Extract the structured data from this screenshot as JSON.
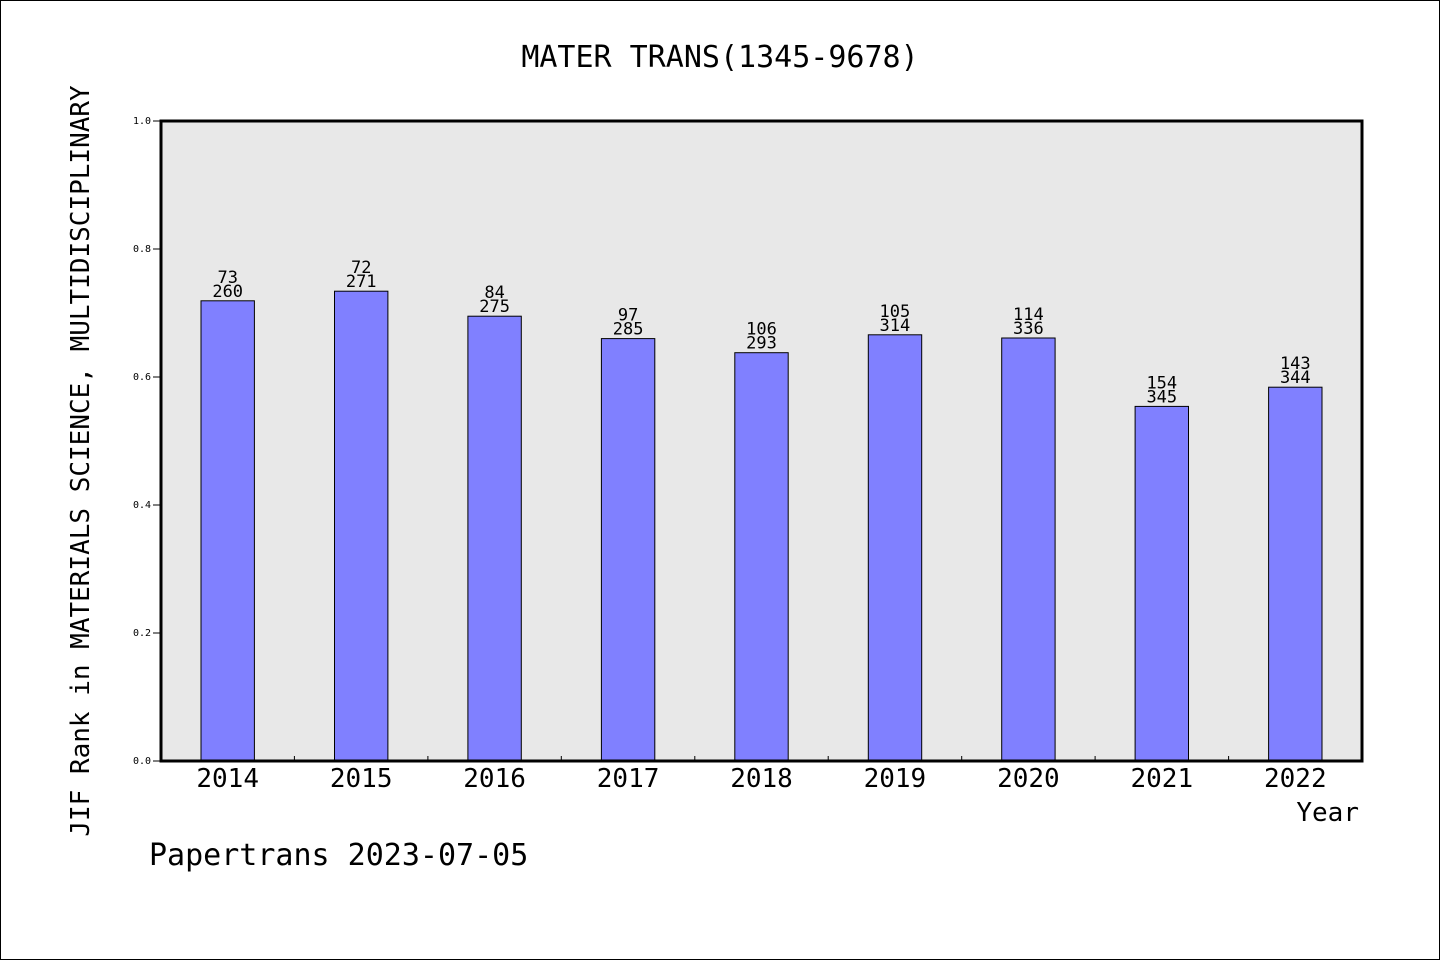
{
  "chart_data": {
    "type": "bar",
    "title": "MATER TRANS(1345-9678)",
    "xlabel": "Year",
    "ylabel": "JIF Rank in MATERIALS SCIENCE, MULTIDISCIPLINARY",
    "ylim": [
      0.0,
      1.0
    ],
    "yticks": [
      "0.0",
      "0.2",
      "0.4",
      "0.6",
      "0.8",
      "1.0"
    ],
    "grid": false,
    "categories": [
      "2014",
      "2015",
      "2016",
      "2017",
      "2018",
      "2019",
      "2020",
      "2021",
      "2022"
    ],
    "values": [
      0.719,
      0.734,
      0.695,
      0.66,
      0.638,
      0.666,
      0.661,
      0.554,
      0.584
    ],
    "ranks": [
      "73",
      "72",
      "84",
      "97",
      "106",
      "105",
      "114",
      "154",
      "143"
    ],
    "totals": [
      "260",
      "271",
      "275",
      "285",
      "293",
      "314",
      "336",
      "345",
      "344"
    ],
    "colors": {
      "bar": "#8080ff",
      "plot_bg": "#e8e8e8",
      "axis": "#000000"
    }
  },
  "footer": {
    "credit": "Papertrans 2023-07-05"
  }
}
